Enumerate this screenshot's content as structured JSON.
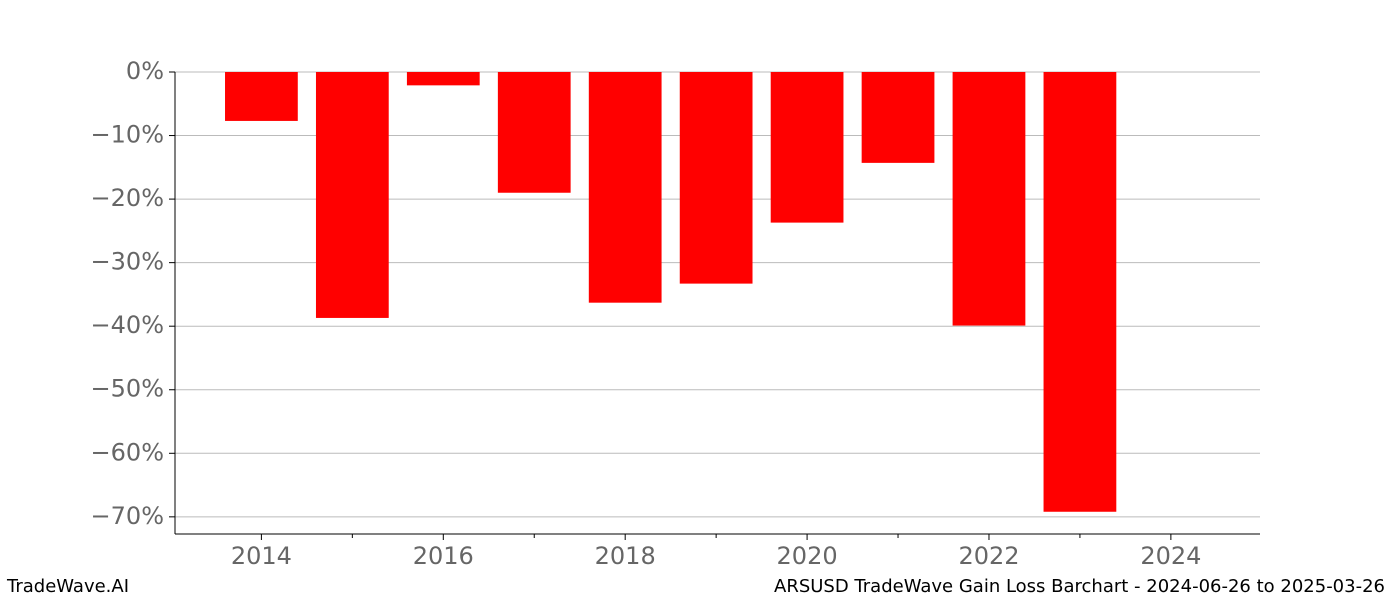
{
  "chart_data": {
    "type": "bar",
    "title": "ARSUSD TradeWave Gain Loss Barchart - 2024-06-26 to 2025-03-26",
    "watermark": "TradeWave.AI",
    "x": [
      2014,
      2015,
      2016,
      2017,
      2018,
      2019,
      2020,
      2021,
      2022,
      2023
    ],
    "values": [
      -7.7,
      -38.7,
      -2.1,
      -19.0,
      -36.3,
      -33.3,
      -23.7,
      -14.3,
      -39.9,
      -69.2
    ],
    "color": "#ff0000",
    "bar_width": 0.8,
    "xlim": [
      2013.05,
      2024.98
    ],
    "xticks": [
      2014,
      2016,
      2018,
      2020,
      2022,
      2024
    ],
    "xminorticks": [
      2015,
      2017,
      2019,
      2021,
      2023
    ],
    "ylim": [
      -72.7,
      0
    ],
    "yticks": [
      {
        "value": 0,
        "label": "0%"
      },
      {
        "value": -10,
        "label": "−10%"
      },
      {
        "value": -20,
        "label": "−20%"
      },
      {
        "value": -30,
        "label": "−30%"
      },
      {
        "value": -40,
        "label": "−40%"
      },
      {
        "value": -50,
        "label": "−50%"
      },
      {
        "value": -60,
        "label": "−60%"
      },
      {
        "value": -70,
        "label": "−70%"
      }
    ],
    "grid": true
  }
}
